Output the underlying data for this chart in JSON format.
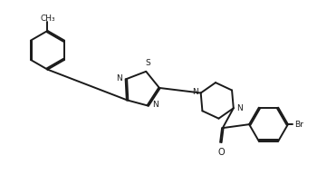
{
  "bg_color": "#ffffff",
  "line_color": "#1a1a1a",
  "line_width": 1.4,
  "font_size": 6.5,
  "fig_width": 3.5,
  "fig_height": 1.93,
  "dpi": 100,
  "xlim": [
    0,
    3.5
  ],
  "ylim": [
    0,
    1.93
  ]
}
